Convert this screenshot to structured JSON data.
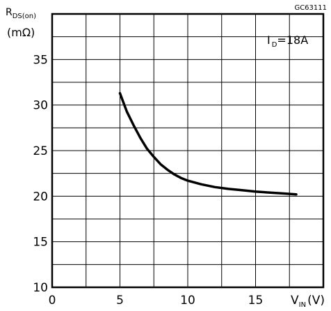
{
  "chart_data": {
    "type": "line",
    "figure_code": "GC63111",
    "ylabel": {
      "symbol": "R",
      "subscript": "DS(on)",
      "unit": "(mΩ)"
    },
    "xlabel": {
      "symbol": "V",
      "subscript": "IN",
      "unit": "(V)"
    },
    "annotation": {
      "symbol": "I",
      "subscript": "D",
      "text": "=18A"
    },
    "xlim": [
      0,
      20
    ],
    "ylim": [
      10,
      40
    ],
    "x_ticks": [
      "0",
      "5",
      "10",
      "15"
    ],
    "y_ticks": [
      "10",
      "15",
      "20",
      "25",
      "30",
      "35"
    ],
    "grid": true,
    "series": [
      {
        "x": [
          5,
          5.5,
          6,
          6.5,
          7,
          7.5,
          8,
          8.5,
          9,
          9.5,
          10,
          11,
          12,
          13,
          14,
          15,
          16,
          17,
          18
        ],
        "y": [
          31.3,
          29.3,
          27.8,
          26.4,
          25.2,
          24.3,
          23.5,
          22.9,
          22.4,
          22.0,
          21.7,
          21.3,
          21.0,
          20.8,
          20.65,
          20.5,
          20.4,
          20.3,
          20.2
        ]
      }
    ]
  }
}
